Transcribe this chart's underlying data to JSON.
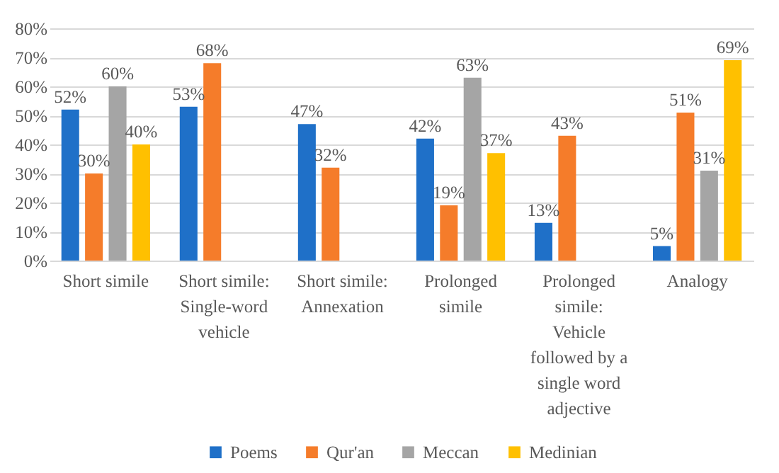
{
  "chart_data": {
    "type": "bar",
    "categories": [
      "Short simile",
      "Short simile: Single-word vehicle",
      "Short simile: Annexation",
      "Prolonged simile",
      "Prolonged simile: Vehicle followed by a single word adjective",
      "Analogy"
    ],
    "series": [
      {
        "name": "Poems",
        "color": "#1f70c8",
        "values": [
          52,
          53,
          47,
          42,
          13,
          5
        ],
        "value_labels": [
          "52%",
          "53%",
          "47%",
          "42%",
          "13%",
          "5%"
        ]
      },
      {
        "name": "Qur'an",
        "color": "#f57c2a",
        "values": [
          30,
          68,
          32,
          19,
          43,
          51
        ],
        "value_labels": [
          "30%",
          "68%",
          "32%",
          "19%",
          "43%",
          "51%"
        ]
      },
      {
        "name": "Meccan",
        "color": "#a5a5a5",
        "values": [
          60,
          null,
          null,
          63,
          null,
          31
        ],
        "value_labels": [
          "60%",
          null,
          null,
          "63%",
          null,
          "31%"
        ]
      },
      {
        "name": "Medinian",
        "color": "#ffc000",
        "values": [
          40,
          null,
          null,
          37,
          null,
          69
        ],
        "value_labels": [
          "40%",
          null,
          null,
          "37%",
          null,
          "69%"
        ]
      }
    ],
    "ylim": [
      0,
      80
    ],
    "yticks": [
      {
        "value": 0,
        "label": "0%"
      },
      {
        "value": 10,
        "label": "10%"
      },
      {
        "value": 20,
        "label": "20%"
      },
      {
        "value": 30,
        "label": "30%"
      },
      {
        "value": 40,
        "label": "40%"
      },
      {
        "value": 50,
        "label": "50%"
      },
      {
        "value": 60,
        "label": "60%"
      },
      {
        "value": 70,
        "label": "70%"
      },
      {
        "value": 80,
        "label": "80%"
      }
    ],
    "grid": "y",
    "legend": "bottom"
  }
}
